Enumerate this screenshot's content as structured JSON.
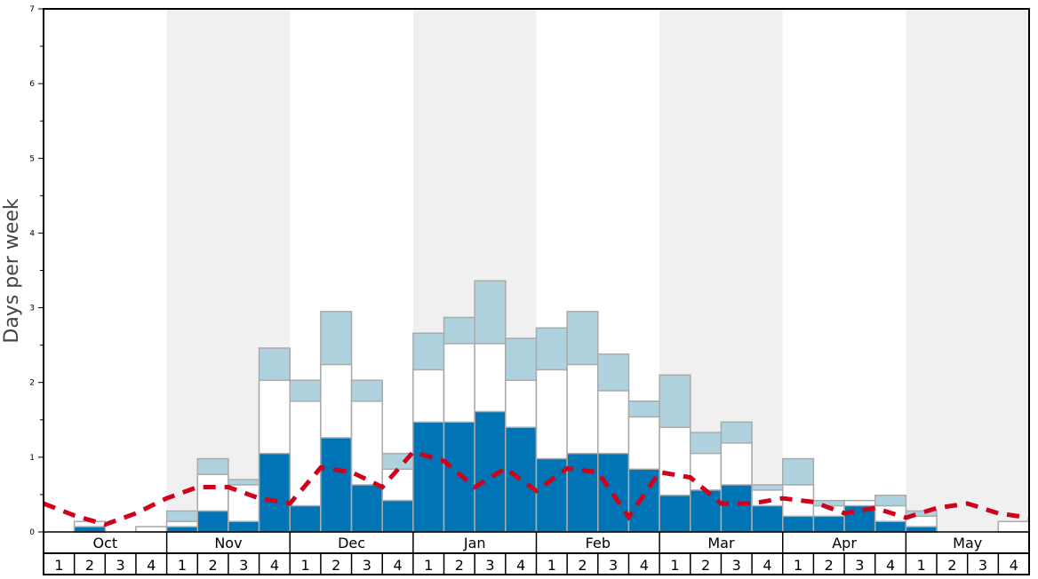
{
  "chart_data": {
    "type": "bar",
    "stacked": true,
    "ylabel": "Days per week",
    "xlabel": "",
    "ylim": [
      0,
      7
    ],
    "yticks": [
      0,
      1,
      2,
      3,
      4,
      5,
      6,
      7
    ],
    "months": [
      "Oct",
      "Nov",
      "Dec",
      "Jan",
      "Feb",
      "Mar",
      "Apr",
      "May"
    ],
    "week_labels": [
      "1",
      "2",
      "3",
      "4"
    ],
    "shaded_months": [
      "Nov",
      "Jan",
      "Mar",
      "May"
    ],
    "colors": {
      "dark": "#0074b4",
      "middle": "#ffffff",
      "light": "#aed3df",
      "line": "#d0021b",
      "shade": "#f0f0f0",
      "bar_border": "#aaaaaa"
    },
    "cumulative_levels": {
      "dark": [
        0,
        0.07,
        0,
        0,
        0.07,
        0.28,
        0.14,
        1.05,
        0.35,
        1.26,
        0.63,
        0.42,
        1.47,
        1.47,
        1.61,
        1.4,
        0.98,
        1.05,
        1.05,
        0.84,
        0.49,
        0.56,
        0.63,
        0.35,
        0.21,
        0.21,
        0.35,
        0.14,
        0.07,
        0,
        0,
        0
      ],
      "middle": [
        0,
        0.14,
        0,
        0.07,
        0.14,
        0.77,
        0.63,
        2.03,
        1.75,
        2.24,
        1.75,
        0.84,
        2.17,
        2.52,
        2.52,
        2.03,
        2.17,
        2.24,
        1.89,
        1.54,
        1.4,
        1.05,
        1.19,
        0.56,
        0.63,
        0.35,
        0.42,
        0.35,
        0.21,
        0,
        0,
        0.14
      ],
      "light": [
        0,
        0.14,
        0,
        0.07,
        0.28,
        0.98,
        0.7,
        2.46,
        2.03,
        2.95,
        2.03,
        1.05,
        2.66,
        2.87,
        3.36,
        2.59,
        2.73,
        2.95,
        2.38,
        1.75,
        2.1,
        1.33,
        1.47,
        0.63,
        0.98,
        0.42,
        0.42,
        0.49,
        0.28,
        0,
        0,
        0.14
      ]
    },
    "line_series": {
      "style": "dashed",
      "values": [
        0.38,
        0.22,
        0.1,
        0.25,
        0.45,
        0.6,
        0.6,
        0.45,
        0.38,
        0.86,
        0.8,
        0.6,
        1.07,
        0.95,
        0.6,
        0.85,
        0.55,
        0.85,
        0.8,
        0.2,
        0.8,
        0.73,
        0.38,
        0.38,
        0.45,
        0.4,
        0.25,
        0.32,
        0.19,
        0.32,
        0.38,
        0.25,
        0.19
      ]
    },
    "grid": false,
    "legend": "none"
  }
}
